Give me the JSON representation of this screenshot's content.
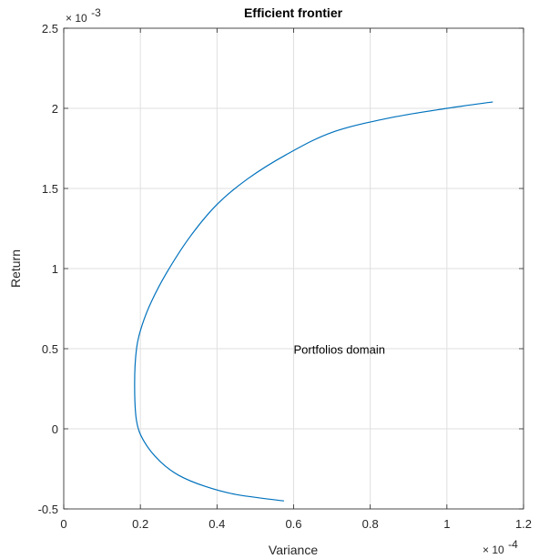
{
  "chart_data": {
    "type": "line",
    "title": "Efficient frontier",
    "xlabel": "Variance",
    "ylabel": "Return",
    "x_exponent": {
      "base": "× 10",
      "power": "-4"
    },
    "y_exponent": {
      "base": "× 10",
      "power": "-3"
    },
    "xlim": [
      0,
      1.2
    ],
    "ylim": [
      -0.5,
      2.5
    ],
    "x_ticks": [
      0,
      0.2,
      0.4,
      0.6,
      0.8,
      1.0,
      1.2
    ],
    "x_tick_labels": [
      "0",
      "0.2",
      "0.4",
      "0.6",
      "0.8",
      "1",
      "1.2"
    ],
    "y_ticks": [
      -0.5,
      0,
      0.5,
      1.0,
      1.5,
      2.0,
      2.5
    ],
    "y_tick_labels": [
      "-0.5",
      "0",
      "0.5",
      "1",
      "1.5",
      "2",
      "2.5"
    ],
    "grid": true,
    "series": [
      {
        "color": "#0072BD",
        "x": [
          0.575,
          0.45,
          0.37,
          0.3,
          0.25,
          0.21,
          0.19,
          0.185,
          0.19,
          0.205,
          0.23,
          0.27,
          0.33,
          0.4,
          0.48,
          0.58,
          0.7,
          0.85,
          1.0,
          1.12
        ],
        "y": [
          -0.45,
          -0.41,
          -0.36,
          -0.29,
          -0.2,
          -0.08,
          0.05,
          0.28,
          0.5,
          0.65,
          0.8,
          0.98,
          1.2,
          1.4,
          1.56,
          1.71,
          1.85,
          1.94,
          2.0,
          2.04
        ]
      }
    ],
    "annotations": [
      {
        "text": "Portfolios domain",
        "x": 0.6,
        "y": 0.47
      }
    ]
  }
}
